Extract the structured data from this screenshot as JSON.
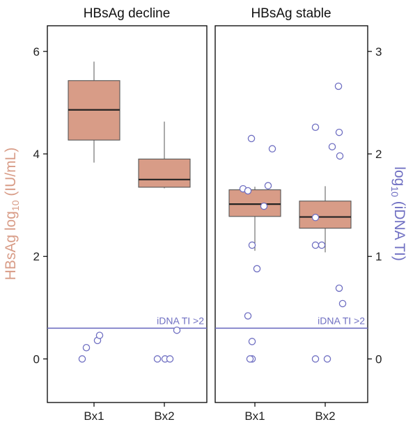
{
  "chart_data": {
    "type": "box",
    "colors": {
      "box_fill": "#d89c87",
      "box_stroke": "#555555",
      "point_stroke": "#6f6fc2",
      "threshold": "#6f6fc2",
      "left_axis_label": "#d89c87",
      "right_axis_label": "#6f6fc2"
    },
    "y_left": {
      "label_parts": [
        "HBsAg log",
        "10",
        " (IU/mL)"
      ],
      "range": [
        -0.85,
        6.5
      ],
      "ticks": [
        0,
        2,
        4,
        6
      ],
      "tick_labels": [
        "0",
        "2",
        "4",
        "6"
      ]
    },
    "y_right": {
      "label_parts": [
        "log",
        "10",
        " (iDNA TI)"
      ],
      "range": [
        -0.425,
        3.25
      ],
      "ticks": [
        0,
        1,
        2,
        3
      ],
      "tick_labels": [
        "0",
        "1",
        "2",
        "3"
      ]
    },
    "categories": [
      "Bx1",
      "Bx2"
    ],
    "threshold": {
      "value_right": 0.3,
      "label": "iDNA TI >2"
    },
    "panels": [
      {
        "title": "HBsAg decline",
        "boxes": [
          {
            "category": "Bx1",
            "whisker_low": 3.83,
            "q1": 4.27,
            "median": 4.86,
            "q3": 5.43,
            "whisker_high": 5.8
          },
          {
            "category": "Bx2",
            "whisker_low": 3.33,
            "q1": 3.35,
            "median": 3.5,
            "q3": 3.9,
            "whisker_high": 4.63
          }
        ],
        "points": [
          {
            "category": "Bx1",
            "offset": -0.17,
            "value": 0.0
          },
          {
            "category": "Bx1",
            "offset": -0.11,
            "value": 0.11
          },
          {
            "category": "Bx1",
            "offset": 0.05,
            "value": 0.18
          },
          {
            "category": "Bx1",
            "offset": 0.08,
            "value": 0.23
          },
          {
            "category": "Bx2",
            "offset": -0.1,
            "value": 0.0
          },
          {
            "category": "Bx2",
            "offset": 0.01,
            "value": 0.0
          },
          {
            "category": "Bx2",
            "offset": 0.08,
            "value": 0.0
          },
          {
            "category": "Bx2",
            "offset": 0.18,
            "value": 0.28
          }
        ]
      },
      {
        "title": "HBsAg stable",
        "boxes": [
          {
            "category": "Bx1",
            "whisker_low": 2.11,
            "q1": 2.78,
            "median": 3.02,
            "q3": 3.3,
            "whisker_high": 3.36
          },
          {
            "category": "Bx2",
            "whisker_low": 2.08,
            "q1": 2.55,
            "median": 2.77,
            "q3": 3.08,
            "whisker_high": 3.37
          }
        ],
        "points": [
          {
            "category": "Bx1",
            "offset": -0.1,
            "value": 0.42
          },
          {
            "category": "Bx1",
            "offset": -0.04,
            "value": 0.0
          },
          {
            "category": "Bx1",
            "offset": -0.04,
            "value": 0.17
          },
          {
            "category": "Bx1",
            "offset": -0.07,
            "value": 0.0
          },
          {
            "category": "Bx1",
            "offset": -0.04,
            "value": 1.11
          },
          {
            "category": "Bx1",
            "offset": 0.03,
            "value": 0.88
          },
          {
            "category": "Bx1",
            "offset": -0.17,
            "value": 1.66
          },
          {
            "category": "Bx1",
            "offset": -0.1,
            "value": 1.64
          },
          {
            "category": "Bx1",
            "offset": 0.13,
            "value": 1.49
          },
          {
            "category": "Bx1",
            "offset": 0.19,
            "value": 1.69
          },
          {
            "category": "Bx1",
            "offset": -0.05,
            "value": 2.15
          },
          {
            "category": "Bx1",
            "offset": 0.25,
            "value": 2.05
          },
          {
            "category": "Bx2",
            "offset": -0.14,
            "value": 0.0
          },
          {
            "category": "Bx2",
            "offset": 0.03,
            "value": 0.0
          },
          {
            "category": "Bx2",
            "offset": -0.14,
            "value": 1.11
          },
          {
            "category": "Bx2",
            "offset": -0.05,
            "value": 1.11
          },
          {
            "category": "Bx2",
            "offset": -0.14,
            "value": 1.38
          },
          {
            "category": "Bx2",
            "offset": 0.25,
            "value": 0.54
          },
          {
            "category": "Bx2",
            "offset": 0.2,
            "value": 0.69
          },
          {
            "category": "Bx2",
            "offset": -0.14,
            "value": 2.26
          },
          {
            "category": "Bx2",
            "offset": 0.1,
            "value": 2.07
          },
          {
            "category": "Bx2",
            "offset": 0.21,
            "value": 1.98
          },
          {
            "category": "Bx2",
            "offset": 0.2,
            "value": 2.21
          },
          {
            "category": "Bx2",
            "offset": 0.19,
            "value": 2.66
          }
        ]
      }
    ]
  }
}
